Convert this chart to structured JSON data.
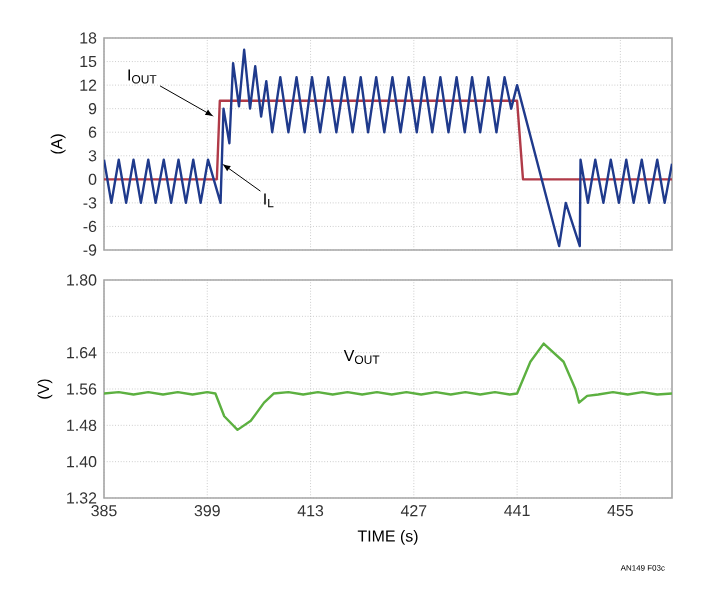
{
  "chart_data": [
    {
      "type": "line",
      "ylabel": "(A)",
      "xlim": [
        385,
        462
      ],
      "xticks": [
        385,
        399,
        413,
        427,
        441,
        455
      ],
      "ylim": [
        -9,
        18
      ],
      "yticks": [
        -9,
        -6,
        -3,
        0,
        3,
        6,
        9,
        12,
        15,
        18
      ],
      "grid": true,
      "tick_labels": "y",
      "legend": false,
      "series": [
        {
          "name": "I$_{OUT}$",
          "color": "#b03a48",
          "x": [
            385,
            400.3,
            400.7,
            441,
            441.8,
            462
          ],
          "values": [
            0,
            0,
            10,
            10,
            0,
            0
          ]
        },
        {
          "name": "I$_{L}$",
          "color": "#1f3a8c",
          "x": [
            385,
            386,
            387,
            388,
            389,
            390,
            391,
            392,
            393.1,
            394.1,
            395.1,
            396.1,
            397.1,
            398.1,
            399.1,
            400.8,
            401.2,
            402,
            402.5,
            403.3,
            404,
            404.8,
            405.5,
            406.3,
            407,
            407.8,
            408.9,
            410,
            411.1,
            412.2,
            413.2,
            414.3,
            415.4,
            416.5,
            417.6,
            418.7,
            419.8,
            420.8,
            421.9,
            423,
            424.1,
            425.2,
            426.3,
            427.4,
            428.4,
            429.5,
            430.6,
            431.7,
            432.8,
            433.9,
            434.9,
            436,
            437.1,
            438.2,
            439.3,
            440.2,
            441,
            446.7,
            447.6,
            449.5,
            449.6,
            450.6,
            451.6,
            452.7,
            453.7,
            454.8,
            455.8,
            456.8,
            457.9,
            458.9,
            460,
            461,
            462
          ],
          "values": [
            2.5,
            -3,
            2.5,
            -3,
            2.5,
            -3,
            2.5,
            -3,
            2.5,
            -3,
            2.5,
            -3,
            2.5,
            -3,
            2.5,
            -3,
            9,
            4.6,
            14.8,
            9.3,
            16.5,
            9,
            14.4,
            8,
            12.5,
            6,
            13,
            6,
            13,
            6,
            13,
            6,
            13,
            6,
            13,
            6,
            13,
            6,
            13,
            6,
            13,
            6,
            13,
            6,
            13,
            6,
            13,
            6,
            13,
            6,
            13,
            6,
            13,
            6,
            13,
            9,
            12,
            -8.5,
            -3,
            -8.5,
            2.5,
            -3,
            2.5,
            -3,
            2.5,
            -3,
            2.5,
            -3,
            2.5,
            -3,
            2.5,
            -3,
            2
          ]
        }
      ]
    },
    {
      "type": "line",
      "xlabel": "TIME (s)",
      "ylabel": "(V)",
      "xlim": [
        385,
        462
      ],
      "xticks": [
        385,
        399,
        413,
        427,
        441,
        455
      ],
      "ylim": [
        1.32,
        1.8
      ],
      "yticks": [
        {
          "value": 1.32,
          "label": "1.32"
        },
        {
          "value": 1.4,
          "label": "1.40"
        },
        {
          "value": 1.48,
          "label": "1.48"
        },
        {
          "value": 1.56,
          "label": "1.56"
        },
        {
          "value": 1.64,
          "label": "1.64"
        },
        {
          "value": 1.72,
          "label": null
        },
        {
          "value": 1.8,
          "label": "1.80"
        }
      ],
      "grid": true,
      "legend": false,
      "annotations": [
        "AN149 F03c"
      ],
      "series": [
        {
          "name": "V$_{OUT}$",
          "color": "#5cb040",
          "x": [
            385,
            387,
            389,
            391,
            393,
            395,
            397,
            399,
            400.1,
            401.3,
            403.1,
            404.9,
            406.7,
            408,
            410,
            412,
            414,
            416,
            418,
            420,
            422,
            424,
            426,
            428,
            430,
            432,
            434,
            436,
            438,
            440,
            441,
            442.8,
            444.6,
            447.3,
            448.9,
            449.4,
            450.5,
            452,
            454,
            456,
            458,
            460,
            462
          ],
          "values": [
            1.55,
            1.553,
            1.548,
            1.553,
            1.548,
            1.553,
            1.548,
            1.553,
            1.55,
            1.5,
            1.47,
            1.49,
            1.53,
            1.55,
            1.553,
            1.548,
            1.553,
            1.548,
            1.553,
            1.548,
            1.553,
            1.548,
            1.553,
            1.548,
            1.553,
            1.548,
            1.553,
            1.548,
            1.553,
            1.548,
            1.55,
            1.62,
            1.66,
            1.62,
            1.56,
            1.53,
            1.545,
            1.548,
            1.553,
            1.548,
            1.553,
            1.548,
            1.55
          ]
        }
      ]
    }
  ]
}
